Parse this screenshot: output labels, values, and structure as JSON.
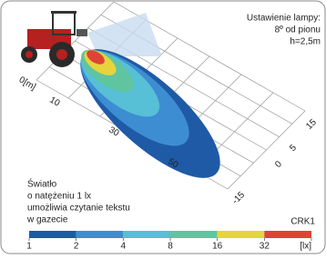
{
  "lamp_setting": [
    "Ustawienie lampy:",
    "8º od pionu",
    "h=2,5m"
  ],
  "distance_labels": [
    "0[m]",
    "10",
    "30",
    "50"
  ],
  "lateral_labels": [
    "15",
    "5",
    "0",
    "-15"
  ],
  "note": [
    "Światło",
    "o natężeniu 1 lx",
    "umożliwia czytanie tekstu",
    "w gazecie"
  ],
  "model": "CRK1",
  "scale": {
    "labels": [
      "1",
      "2",
      "4",
      "8",
      "16",
      "32",
      "[lx]"
    ],
    "colors": [
      "#1f5aa6",
      "#3d8dd2",
      "#57bfd6",
      "#5fc5a0",
      "#e6d43c",
      "#de4436"
    ]
  }
}
